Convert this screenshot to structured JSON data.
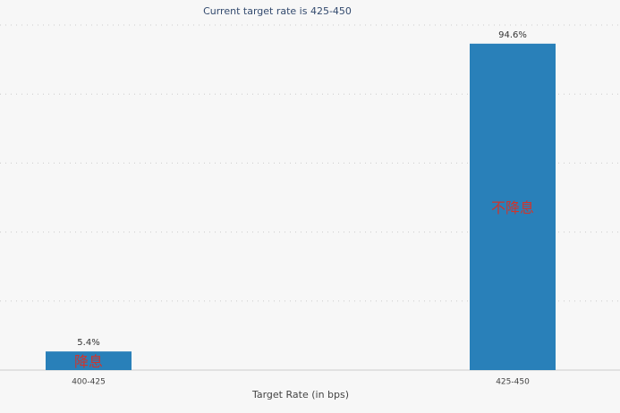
{
  "chart_data": {
    "type": "bar",
    "subtitle": "Current target rate is 425-450",
    "x_label": "Target Rate (in bps)",
    "categories": [
      "400-425",
      "425-450"
    ],
    "values": [
      5.4,
      94.6
    ],
    "value_labels": [
      "5.4%",
      "94.6%"
    ],
    "bar_annotations": [
      "降息",
      "不降息"
    ],
    "color": "#2980b9",
    "annotation_color": "#d0342c",
    "ylim": [
      0,
      100
    ],
    "yticks": [
      0,
      20,
      40,
      60,
      80,
      100
    ],
    "grid": true
  }
}
